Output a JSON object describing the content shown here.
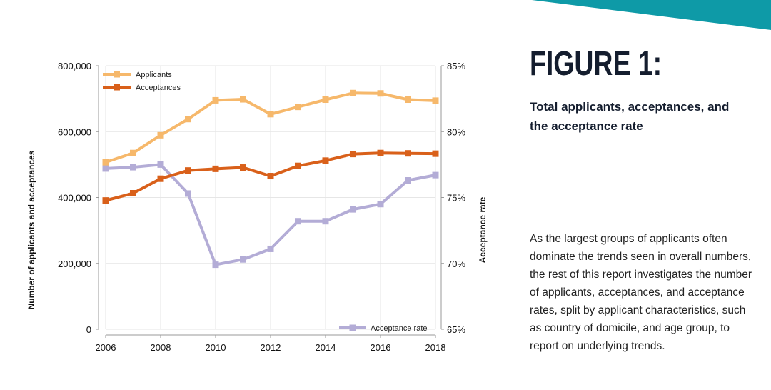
{
  "header": {
    "figure_label": "FIGURE 1:",
    "subtitle": "Total applicants, acceptances, and the acceptance rate",
    "body": "As the largest groups of applicants often dominate the trends seen in overall numbers, the rest of this report investigates the number of applicants, acceptances, and acceptance rates, split by applicant characteristics, such as country of domicile, and age group, to report on underlying trends."
  },
  "colors": {
    "teal": "#0e9aa7",
    "applicants": "#f6b86b",
    "acceptances": "#d9601a",
    "acceptance_rate": "#b3acd6",
    "grid": "#e6e6e6"
  },
  "chart_data": {
    "type": "line",
    "title": "",
    "x": [
      2006,
      2007,
      2008,
      2009,
      2010,
      2011,
      2012,
      2013,
      2014,
      2015,
      2016,
      2017,
      2018
    ],
    "xticks": [
      "2006",
      "2008",
      "2010",
      "2012",
      "2014",
      "2016",
      "2018"
    ],
    "xlabel": "",
    "ylabel": "Number of applicants and acceptances",
    "ylabel_right": "Acceptance rate",
    "ylim": [
      0,
      800000
    ],
    "ylim_right": [
      65,
      85
    ],
    "yticks": [
      "0",
      "200,000",
      "400,000",
      "600,000",
      "800,000"
    ],
    "yticks_right": [
      "65%",
      "70%",
      "75%",
      "80%",
      "85%"
    ],
    "grid": true,
    "legend_top": [
      "Applicants",
      "Acceptances"
    ],
    "legend_bottom": [
      "Acceptance rate"
    ],
    "series": [
      {
        "name": "Applicants",
        "axis": "left",
        "values": [
          507000,
          535000,
          589000,
          638000,
          695000,
          698000,
          653000,
          675000,
          697000,
          717000,
          716000,
          697000,
          694000
        ]
      },
      {
        "name": "Acceptances",
        "axis": "left",
        "values": [
          391000,
          413000,
          457000,
          482000,
          487000,
          491000,
          465000,
          496000,
          512000,
          532000,
          535000,
          534000,
          533000
        ]
      },
      {
        "name": "Acceptance rate",
        "axis": "right",
        "values": [
          77.2,
          77.3,
          77.5,
          75.3,
          69.9,
          70.3,
          71.1,
          73.2,
          73.2,
          74.1,
          74.5,
          76.3,
          76.7
        ]
      }
    ]
  }
}
